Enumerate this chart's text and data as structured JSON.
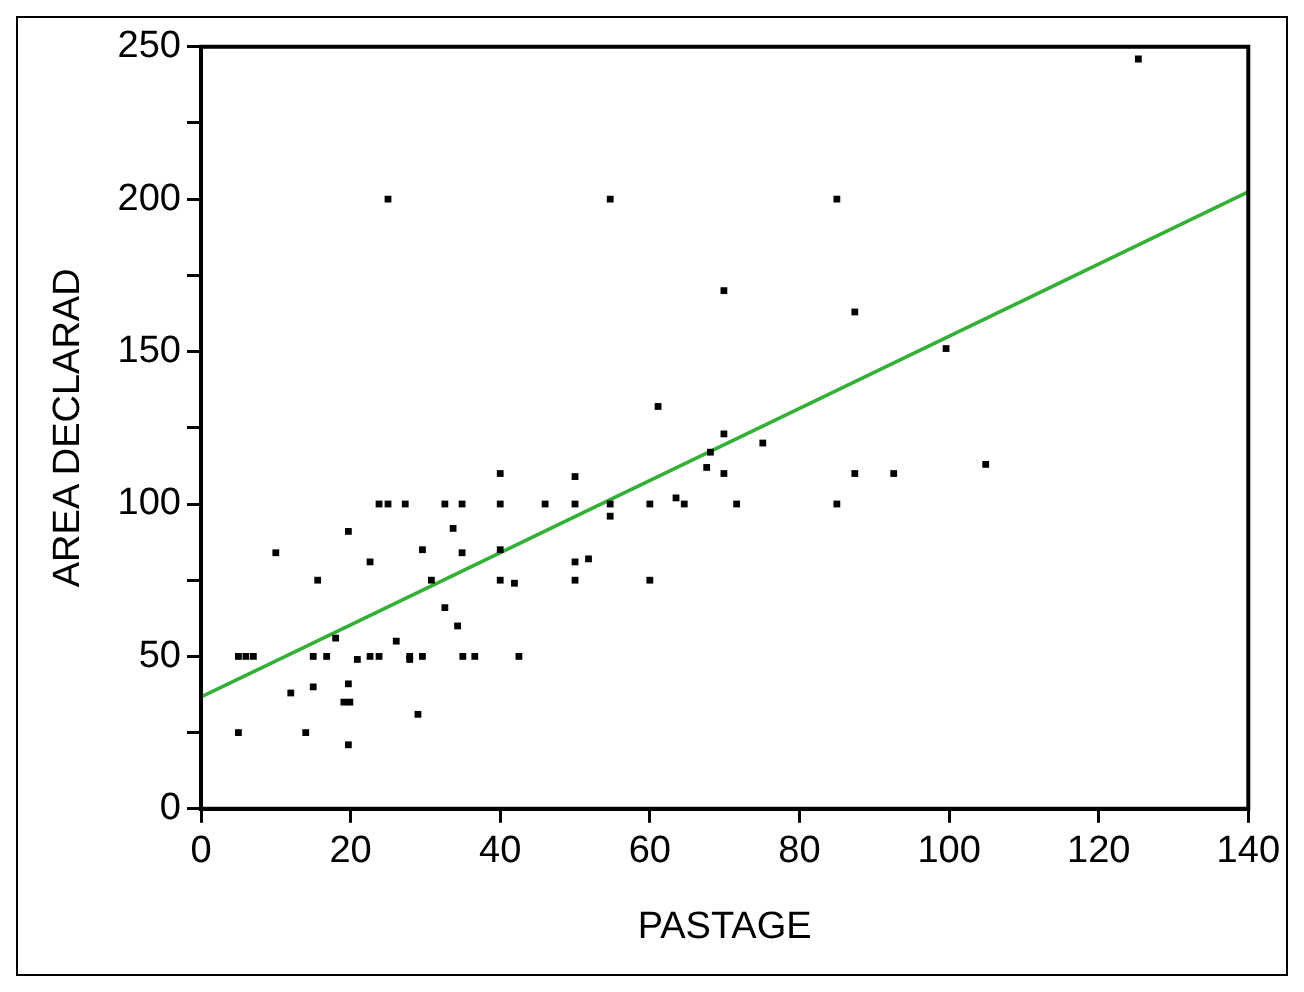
{
  "chart_data": {
    "type": "scatter",
    "xlabel": "PASTAGE",
    "ylabel": "AREA DECLARAD",
    "xlim": [
      0,
      140
    ],
    "xticks": [
      0,
      20,
      40,
      60,
      80,
      100,
      120,
      140
    ],
    "ylim": [
      0,
      250
    ],
    "yticks": [
      0,
      {
        "value": 25,
        "label": null
      },
      50,
      {
        "value": 75,
        "label": null
      },
      100,
      {
        "value": 125,
        "label": null
      },
      150,
      {
        "value": 175,
        "label": null
      },
      200,
      {
        "value": 225,
        "label": null
      },
      250
    ],
    "grid": false,
    "legend": false,
    "marker": "square",
    "series": [
      {
        "color": "#000000",
        "x": [
          5,
          5,
          6,
          7,
          10,
          12,
          14,
          15,
          15,
          15.6,
          16.8,
          18,
          19.7,
          19.7,
          19.1,
          19.9,
          19.7,
          20.9,
          22.6,
          22.6,
          23.8,
          23.8,
          25,
          25,
          26.1,
          27.3,
          27.9,
          27.9,
          29,
          29.6,
          29.6,
          30.8,
          32.6,
          32.6,
          33.7,
          34.3,
          34.9,
          34.9,
          35,
          36.6,
          40,
          40,
          40,
          40,
          41.9,
          42.5,
          46,
          50,
          50,
          50,
          50,
          51.8,
          54.7,
          54.7,
          54.7,
          60,
          60,
          61.1,
          63.5,
          64.6,
          67.6,
          68.1,
          69.9,
          69.9,
          69.9,
          71.6,
          75.1,
          85,
          85,
          87.4,
          87.4,
          92.6,
          99.6,
          104.9,
          125.3
        ],
        "values": [
          25,
          50,
          50,
          50,
          84,
          38,
          25,
          40,
          50,
          75,
          50,
          56,
          91,
          41,
          35,
          35,
          21,
          49,
          81,
          50,
          50,
          100,
          100,
          200,
          55,
          100,
          50,
          49,
          31,
          85,
          50,
          75,
          100,
          66,
          92,
          60,
          100,
          84,
          50,
          50,
          110,
          100,
          85,
          75,
          74,
          50,
          100,
          109,
          100,
          81,
          75,
          82,
          200,
          100,
          96,
          100,
          75,
          132,
          102,
          100,
          112,
          117,
          123,
          170,
          110,
          100,
          120,
          200,
          100,
          163,
          110,
          110,
          151,
          113,
          246
        ]
      },
      {
        "type": "line",
        "color": "#33b035",
        "x": [
          0,
          140
        ],
        "values": [
          36.7,
          202.4
        ],
        "marker": "none",
        "line_style": "solid"
      }
    ]
  }
}
